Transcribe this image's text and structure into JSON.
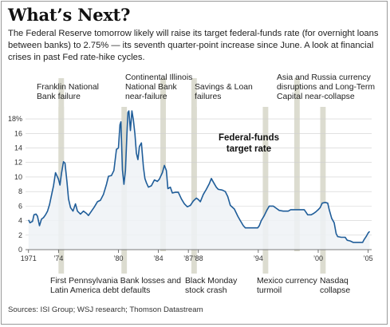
{
  "headline": "What’s Next?",
  "intro": "The Federal Reserve tomorrow likely will raise its target federal-funds rate (for overnight loans between banks) to 2.75% — its seventh quarter-point increase since June. A look at financial crises in past Fed rate-hike cycles.",
  "sources": "Sources: ISI Group; WSJ research; Thomson Datastream",
  "chart_data": {
    "type": "area",
    "series": [
      {
        "name": "Federal-funds target rate",
        "points": [
          [
            1971.0,
            4.1
          ],
          [
            1971.15,
            3.7
          ],
          [
            1971.4,
            3.9
          ],
          [
            1971.55,
            4.8
          ],
          [
            1971.75,
            4.9
          ],
          [
            1971.9,
            4.6
          ],
          [
            1972.1,
            3.3
          ],
          [
            1972.3,
            4.2
          ],
          [
            1972.5,
            4.4
          ],
          [
            1972.7,
            4.8
          ],
          [
            1972.9,
            5.3
          ],
          [
            1973.1,
            6.2
          ],
          [
            1973.3,
            7.5
          ],
          [
            1973.5,
            8.8
          ],
          [
            1973.7,
            10.6
          ],
          [
            1973.9,
            10.0
          ],
          [
            1974.0,
            9.7
          ],
          [
            1974.15,
            8.9
          ],
          [
            1974.3,
            10.5
          ],
          [
            1974.5,
            12.1
          ],
          [
            1974.65,
            11.9
          ],
          [
            1974.85,
            9.3
          ],
          [
            1975.0,
            7.0
          ],
          [
            1975.2,
            5.8
          ],
          [
            1975.45,
            5.3
          ],
          [
            1975.7,
            6.3
          ],
          [
            1975.9,
            5.3
          ],
          [
            1976.2,
            4.9
          ],
          [
            1976.5,
            5.3
          ],
          [
            1976.8,
            5.0
          ],
          [
            1977.0,
            4.7
          ],
          [
            1977.3,
            5.3
          ],
          [
            1977.6,
            5.9
          ],
          [
            1977.9,
            6.6
          ],
          [
            1978.2,
            6.8
          ],
          [
            1978.5,
            7.6
          ],
          [
            1978.8,
            9.0
          ],
          [
            1979.0,
            10.1
          ],
          [
            1979.3,
            10.2
          ],
          [
            1979.55,
            10.9
          ],
          [
            1979.8,
            13.8
          ],
          [
            1980.0,
            14.0
          ],
          [
            1980.15,
            17.2
          ],
          [
            1980.25,
            17.6
          ],
          [
            1980.4,
            11.0
          ],
          [
            1980.55,
            9.0
          ],
          [
            1980.7,
            10.9
          ],
          [
            1980.85,
            15.8
          ],
          [
            1980.95,
            18.9
          ],
          [
            1981.05,
            19.1
          ],
          [
            1981.2,
            16.4
          ],
          [
            1981.35,
            19.1
          ],
          [
            1981.5,
            17.8
          ],
          [
            1981.65,
            15.9
          ],
          [
            1981.8,
            13.3
          ],
          [
            1981.95,
            12.4
          ],
          [
            1982.1,
            14.2
          ],
          [
            1982.3,
            14.7
          ],
          [
            1982.5,
            11.4
          ],
          [
            1982.65,
            9.8
          ],
          [
            1982.8,
            9.2
          ],
          [
            1983.0,
            8.6
          ],
          [
            1983.3,
            8.8
          ],
          [
            1983.6,
            9.6
          ],
          [
            1983.9,
            9.4
          ],
          [
            1984.1,
            9.7
          ],
          [
            1984.4,
            10.6
          ],
          [
            1984.6,
            11.6
          ],
          [
            1984.8,
            10.9
          ],
          [
            1984.95,
            8.4
          ],
          [
            1985.2,
            8.6
          ],
          [
            1985.4,
            7.8
          ],
          [
            1985.7,
            7.9
          ],
          [
            1986.0,
            7.9
          ],
          [
            1986.3,
            7.0
          ],
          [
            1986.6,
            6.3
          ],
          [
            1986.9,
            5.9
          ],
          [
            1987.2,
            6.1
          ],
          [
            1987.5,
            6.7
          ],
          [
            1987.8,
            7.1
          ],
          [
            1988.0,
            6.9
          ],
          [
            1988.2,
            6.6
          ],
          [
            1988.5,
            7.6
          ],
          [
            1988.8,
            8.3
          ],
          [
            1989.1,
            9.1
          ],
          [
            1989.3,
            9.8
          ],
          [
            1989.5,
            9.3
          ],
          [
            1989.8,
            8.6
          ],
          [
            1990.0,
            8.3
          ],
          [
            1990.4,
            8.2
          ],
          [
            1990.7,
            8.0
          ],
          [
            1990.95,
            7.3
          ],
          [
            1991.2,
            6.1
          ],
          [
            1991.6,
            5.6
          ],
          [
            1991.95,
            4.6
          ],
          [
            1992.2,
            4.0
          ],
          [
            1992.5,
            3.3
          ],
          [
            1992.7,
            3.0
          ],
          [
            1993.0,
            3.0
          ],
          [
            1993.5,
            3.0
          ],
          [
            1993.95,
            3.0
          ],
          [
            1994.1,
            3.3
          ],
          [
            1994.3,
            4.0
          ],
          [
            1994.6,
            4.7
          ],
          [
            1994.85,
            5.4
          ],
          [
            1995.1,
            6.0
          ],
          [
            1995.5,
            6.0
          ],
          [
            1995.8,
            5.7
          ],
          [
            1996.1,
            5.4
          ],
          [
            1996.5,
            5.3
          ],
          [
            1997.0,
            5.3
          ],
          [
            1997.25,
            5.5
          ],
          [
            1997.6,
            5.5
          ],
          [
            1998.0,
            5.5
          ],
          [
            1998.6,
            5.5
          ],
          [
            1998.8,
            5.1
          ],
          [
            1998.95,
            4.8
          ],
          [
            1999.3,
            4.8
          ],
          [
            1999.55,
            5.0
          ],
          [
            1999.75,
            5.2
          ],
          [
            2000.0,
            5.5
          ],
          [
            2000.2,
            5.8
          ],
          [
            2000.4,
            6.4
          ],
          [
            2000.7,
            6.5
          ],
          [
            2000.95,
            6.4
          ],
          [
            2001.1,
            5.5
          ],
          [
            2001.35,
            4.3
          ],
          [
            2001.6,
            3.7
          ],
          [
            2001.8,
            2.2
          ],
          [
            2001.95,
            1.8
          ],
          [
            2002.3,
            1.7
          ],
          [
            2002.7,
            1.7
          ],
          [
            2002.9,
            1.3
          ],
          [
            2003.2,
            1.2
          ],
          [
            2003.5,
            1.0
          ],
          [
            2004.0,
            1.0
          ],
          [
            2004.45,
            1.0
          ],
          [
            2004.6,
            1.4
          ],
          [
            2004.8,
            1.8
          ],
          [
            2005.0,
            2.3
          ],
          [
            2005.15,
            2.5
          ]
        ]
      }
    ],
    "series_label": [
      "Federal-funds",
      "target rate"
    ],
    "x_ticks": [
      {
        "x": 1971,
        "label": "1971"
      },
      {
        "x": 1974,
        "label": "’74"
      },
      {
        "x": 1980,
        "label": "’80"
      },
      {
        "x": 1984,
        "label": "’84"
      },
      {
        "x": 1987,
        "label": "’87"
      },
      {
        "x": 1988,
        "label": "’88"
      },
      {
        "x": 1994,
        "label": "’94"
      },
      {
        "x": 2000,
        "label": "’00"
      },
      {
        "x": 2005,
        "label": "’05"
      }
    ],
    "y_ticks": [
      {
        "y": 0,
        "label": "0"
      },
      {
        "y": 2,
        "label": "2"
      },
      {
        "y": 4,
        "label": "4"
      },
      {
        "y": 6,
        "label": "6"
      },
      {
        "y": 8,
        "label": "8"
      },
      {
        "y": 10,
        "label": "10"
      },
      {
        "y": 12,
        "label": "12"
      },
      {
        "y": 14,
        "label": "14"
      },
      {
        "y": 16,
        "label": "16"
      },
      {
        "y": 18,
        "label": "18%"
      }
    ],
    "xlim": [
      1970.7,
      2005.35
    ],
    "ylim": [
      0,
      19
    ],
    "grid": "horizontal",
    "annotations": [
      {
        "x0": 1974.0,
        "x1": 1974.55,
        "position": "top",
        "lines": [
          "Franklin National",
          "Bank failure"
        ]
      },
      {
        "x0": 1974.0,
        "x1": 1974.55,
        "position": "bottom",
        "lines": [
          "First Pennsylvania Bank losses and",
          "Latin America debt defaults"
        ]
      },
      {
        "x0": 1980.3,
        "x1": 1980.85,
        "position": "bottom",
        "lines": []
      },
      {
        "x0": 1984.2,
        "x1": 1984.75,
        "position": "top",
        "lines": [
          "Continental Illinois",
          "National Bank",
          "near-failure"
        ]
      },
      {
        "x0": 1987.3,
        "x1": 1987.85,
        "position": "top",
        "lines": [
          "Savings & Loan",
          "failures"
        ]
      },
      {
        "x0": 1987.3,
        "x1": 1987.85,
        "position": "bottom",
        "lines": [
          "Black Monday",
          "stock crash"
        ]
      },
      {
        "x0": 1994.45,
        "x1": 1995.0,
        "position": "bottom",
        "lines": [
          "Mexico currency",
          "turmoil"
        ]
      },
      {
        "x0": 1997.6,
        "x1": 1998.15,
        "position": "top",
        "lines": [
          "Asia and Russia currency",
          "disruptions and Long-Term",
          "Capital near-collapse"
        ]
      },
      {
        "x0": 2000.2,
        "x1": 2000.75,
        "position": "bottom",
        "lines": [
          "Nasdaq",
          "collapse"
        ]
      }
    ],
    "colors": {
      "line": "#1f5d99",
      "area": "#eef2f6",
      "band": "#dcdcd0",
      "grid": "#cfcfcf",
      "axis": "#555555"
    }
  }
}
